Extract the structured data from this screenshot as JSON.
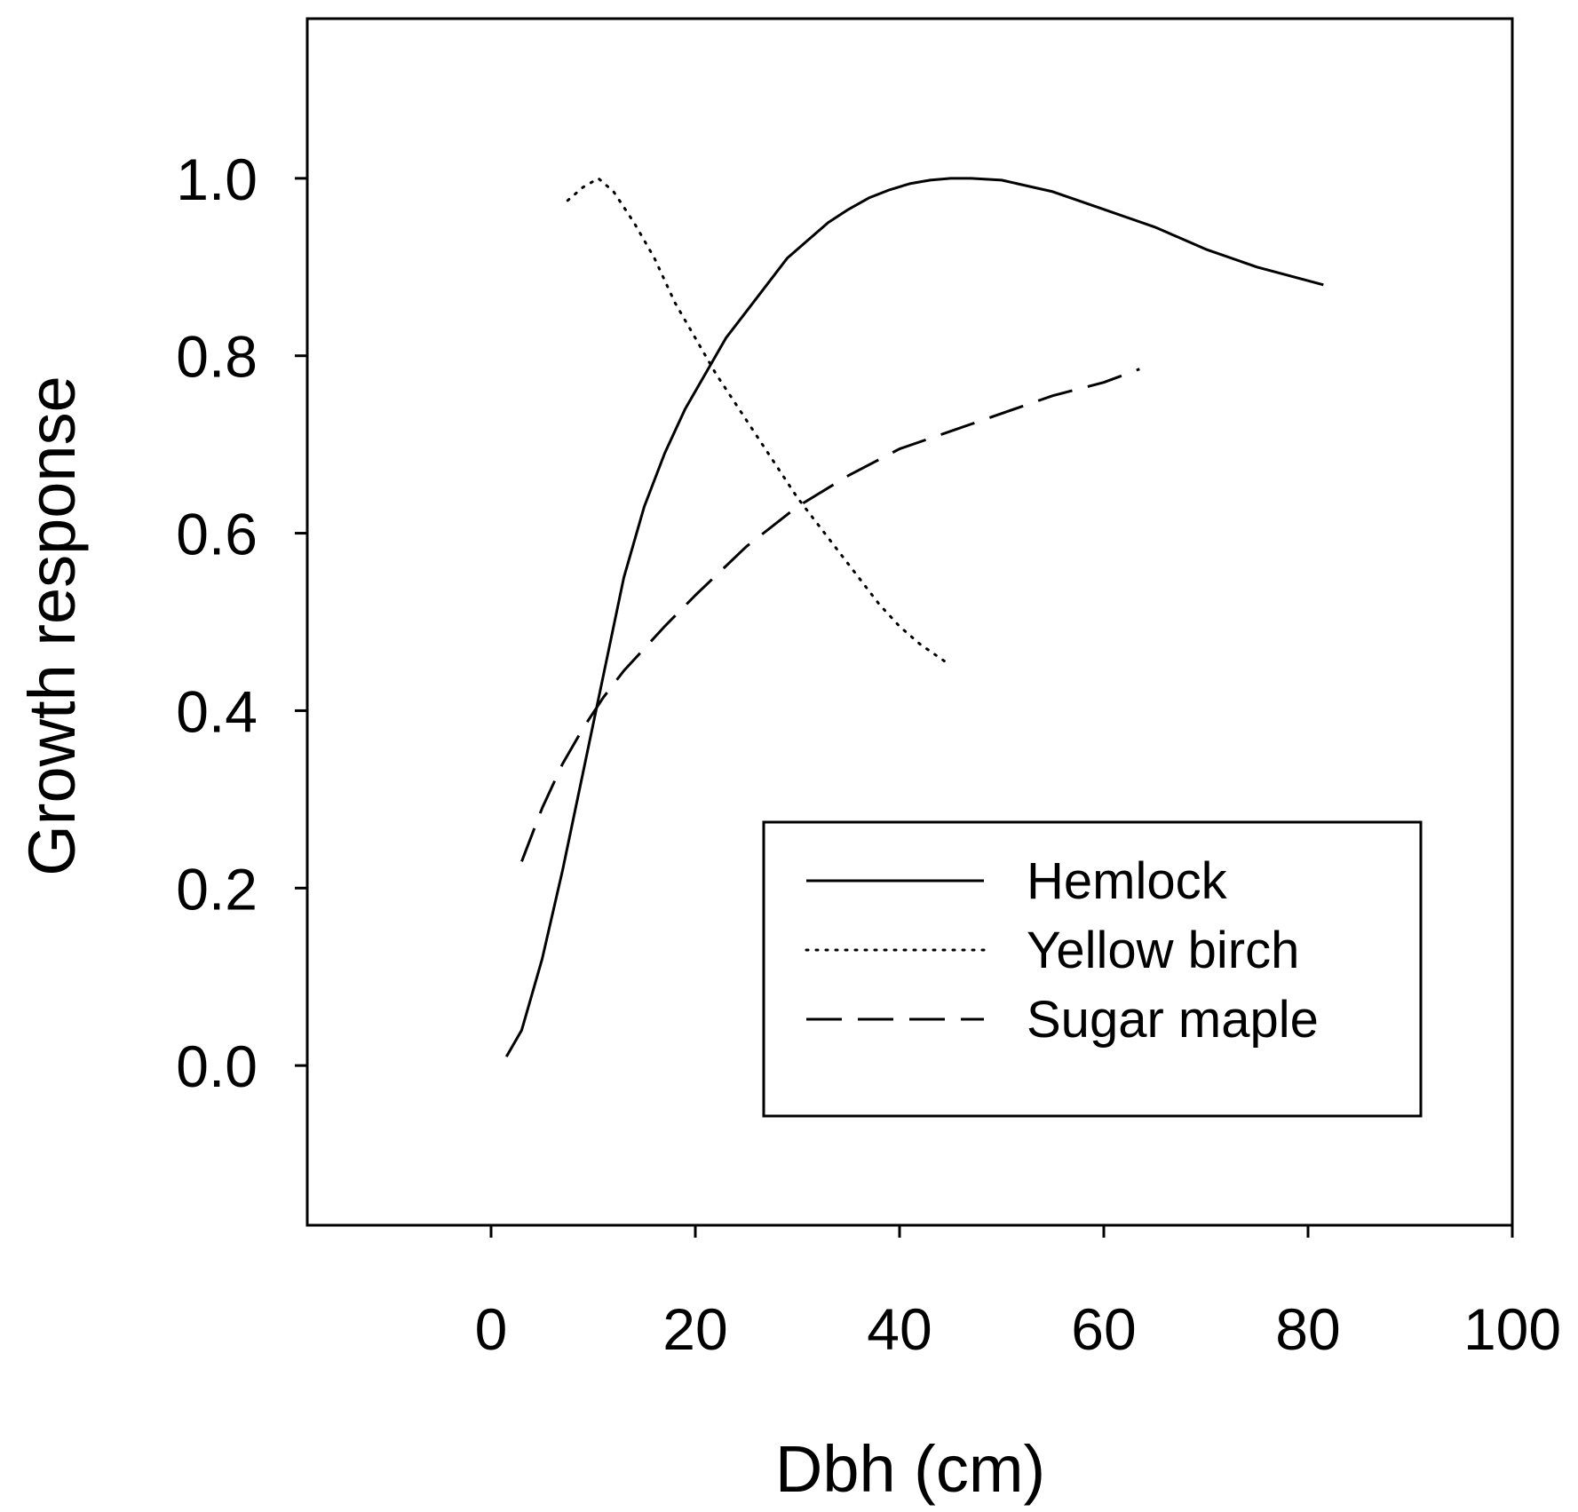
{
  "chart_data": {
    "type": "line",
    "title": "",
    "xlabel": "Dbh (cm)",
    "ylabel": "Growth response",
    "xlim": [
      -18,
      100
    ],
    "ylim": [
      -0.18,
      1.18
    ],
    "xticks": [
      0,
      20,
      40,
      60,
      80,
      100
    ],
    "xtick_labels": [
      "0",
      "20",
      "40",
      "60",
      "80",
      "100"
    ],
    "yticks": [
      0.0,
      0.2,
      0.4,
      0.6,
      0.8,
      1.0
    ],
    "ytick_labels": [
      "0.0",
      "0.2",
      "0.4",
      "0.6",
      "0.8",
      "1.0"
    ],
    "grid": false,
    "legend_position": "lower-right",
    "series": [
      {
        "name": "Hemlock",
        "style": "solid",
        "x": [
          1.5,
          3,
          5,
          7,
          9,
          11,
          13,
          15,
          17,
          19,
          21,
          23,
          25,
          27,
          29,
          31,
          33,
          35,
          37,
          39,
          41,
          43,
          45,
          47,
          50,
          55,
          60,
          65,
          70,
          75,
          81.5
        ],
        "y": [
          0.01,
          0.04,
          0.12,
          0.22,
          0.33,
          0.44,
          0.55,
          0.63,
          0.69,
          0.74,
          0.78,
          0.82,
          0.85,
          0.88,
          0.91,
          0.93,
          0.95,
          0.965,
          0.978,
          0.987,
          0.994,
          0.998,
          1.0,
          1.0,
          0.998,
          0.985,
          0.965,
          0.945,
          0.92,
          0.9,
          0.88
        ]
      },
      {
        "name": "Yellow birch",
        "style": "dotted",
        "x": [
          7.5,
          9,
          10.5,
          12,
          14,
          16,
          18,
          20,
          22,
          24,
          26,
          28,
          30,
          32,
          34,
          36,
          38,
          40,
          42,
          44.5
        ],
        "y": [
          0.975,
          0.99,
          1.0,
          0.985,
          0.95,
          0.91,
          0.86,
          0.82,
          0.78,
          0.745,
          0.71,
          0.675,
          0.64,
          0.61,
          0.58,
          0.55,
          0.52,
          0.495,
          0.475,
          0.455
        ]
      },
      {
        "name": "Sugar maple",
        "style": "dashed",
        "x": [
          3,
          5,
          7,
          9,
          11,
          13,
          15,
          17,
          20,
          25,
          30,
          35,
          40,
          45,
          50,
          55,
          60,
          63.5
        ],
        "y": [
          0.23,
          0.29,
          0.34,
          0.38,
          0.415,
          0.445,
          0.47,
          0.495,
          0.53,
          0.585,
          0.63,
          0.665,
          0.695,
          0.715,
          0.735,
          0.755,
          0.77,
          0.785
        ]
      }
    ]
  }
}
